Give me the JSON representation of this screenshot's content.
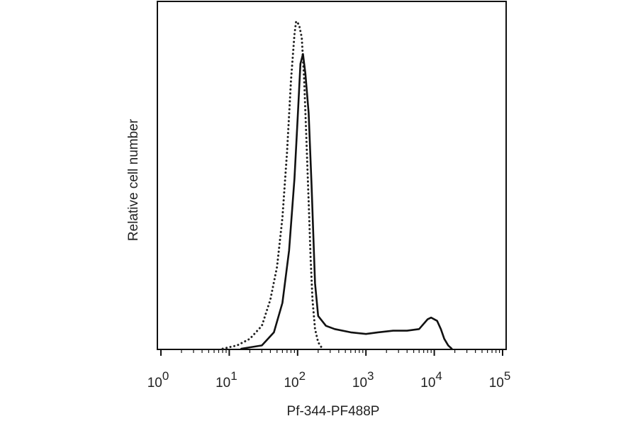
{
  "chart_data": {
    "type": "line",
    "title": "",
    "xlabel": "Pf-344-PF488P",
    "ylabel": "Relative cell number",
    "x_scale": "log",
    "xlim": [
      1,
      100000
    ],
    "ylim": [
      0,
      1
    ],
    "grid": false,
    "legend": "none",
    "x_ticks": [
      {
        "base": "10",
        "exp": "0",
        "value": 1
      },
      {
        "base": "10",
        "exp": "1",
        "value": 10
      },
      {
        "base": "10",
        "exp": "2",
        "value": 100
      },
      {
        "base": "10",
        "exp": "3",
        "value": 1000
      },
      {
        "base": "10",
        "exp": "4",
        "value": 10000
      },
      {
        "base": "10",
        "exp": "5",
        "value": 100000
      }
    ],
    "series": [
      {
        "style": "dotted",
        "color": "#222222",
        "points": [
          [
            8,
            0.0
          ],
          [
            13,
            0.01
          ],
          [
            20,
            0.03
          ],
          [
            30,
            0.07
          ],
          [
            40,
            0.15
          ],
          [
            50,
            0.25
          ],
          [
            60,
            0.4
          ],
          [
            70,
            0.6
          ],
          [
            80,
            0.82
          ],
          [
            90,
            0.96
          ],
          [
            95,
            1.0
          ],
          [
            105,
            0.99
          ],
          [
            115,
            0.95
          ],
          [
            125,
            0.82
          ],
          [
            135,
            0.63
          ],
          [
            145,
            0.45
          ],
          [
            155,
            0.28
          ],
          [
            165,
            0.15
          ],
          [
            180,
            0.06
          ],
          [
            200,
            0.02
          ],
          [
            230,
            0.0
          ]
        ]
      },
      {
        "style": "solid",
        "color": "#111111",
        "points": [
          [
            15,
            0.0
          ],
          [
            30,
            0.01
          ],
          [
            45,
            0.05
          ],
          [
            60,
            0.14
          ],
          [
            75,
            0.3
          ],
          [
            90,
            0.52
          ],
          [
            100,
            0.7
          ],
          [
            110,
            0.87
          ],
          [
            120,
            0.9
          ],
          [
            130,
            0.84
          ],
          [
            145,
            0.72
          ],
          [
            160,
            0.5
          ],
          [
            180,
            0.2
          ],
          [
            200,
            0.1
          ],
          [
            260,
            0.07
          ],
          [
            350,
            0.06
          ],
          [
            600,
            0.05
          ],
          [
            1000,
            0.045
          ],
          [
            1500,
            0.05
          ],
          [
            2500,
            0.055
          ],
          [
            4000,
            0.055
          ],
          [
            6000,
            0.06
          ],
          [
            8000,
            0.09
          ],
          [
            9000,
            0.095
          ],
          [
            11000,
            0.085
          ],
          [
            12500,
            0.06
          ],
          [
            14000,
            0.03
          ],
          [
            16000,
            0.01
          ],
          [
            18000,
            0.0
          ]
        ]
      }
    ]
  }
}
